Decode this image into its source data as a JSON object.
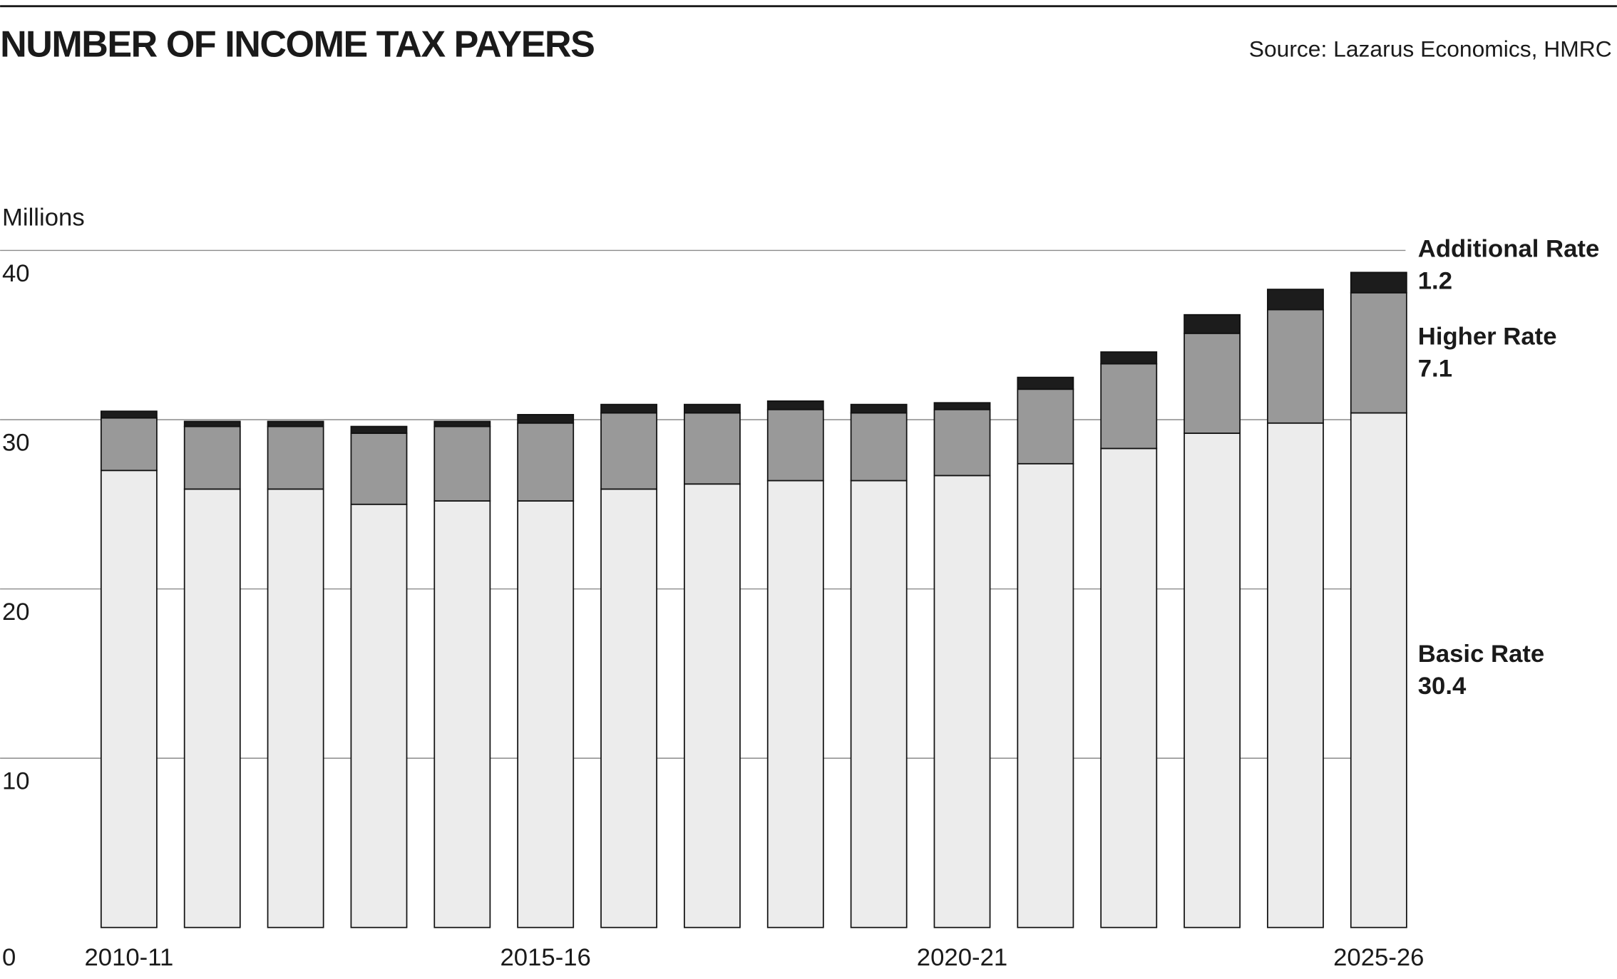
{
  "chart_data": {
    "type": "stacked_bar",
    "title": "NUMBER OF INCOME TAX PAYERS",
    "source": "Source: Lazarus Economics, HMRC",
    "y_label": "Millions",
    "categories": [
      "2010-11",
      null,
      null,
      null,
      null,
      "2015-16",
      null,
      null,
      null,
      null,
      "2020-21",
      null,
      null,
      null,
      null,
      "2025-26"
    ],
    "series": [
      {
        "name": "Basic Rate",
        "color": "#ececec",
        "values": [
          27.0,
          25.9,
          25.9,
          25.0,
          25.2,
          25.2,
          25.9,
          26.2,
          26.4,
          26.4,
          26.7,
          27.4,
          28.3,
          29.2,
          29.8,
          30.4
        ]
      },
      {
        "name": "Higher Rate",
        "color": "#999999",
        "values": [
          3.1,
          3.7,
          3.7,
          4.2,
          4.4,
          4.6,
          4.5,
          4.2,
          4.2,
          4.0,
          3.9,
          4.4,
          5.0,
          5.9,
          6.7,
          7.1
        ]
      },
      {
        "name": "Additional Rate",
        "color": "#1c1c1c",
        "values": [
          0.4,
          0.3,
          0.3,
          0.4,
          0.3,
          0.5,
          0.5,
          0.5,
          0.5,
          0.5,
          0.4,
          0.7,
          0.7,
          1.1,
          1.2,
          1.2
        ]
      }
    ],
    "ylim": [
      0,
      40
    ],
    "yticks": [
      0,
      10,
      20,
      30,
      40
    ],
    "grid": true
  }
}
